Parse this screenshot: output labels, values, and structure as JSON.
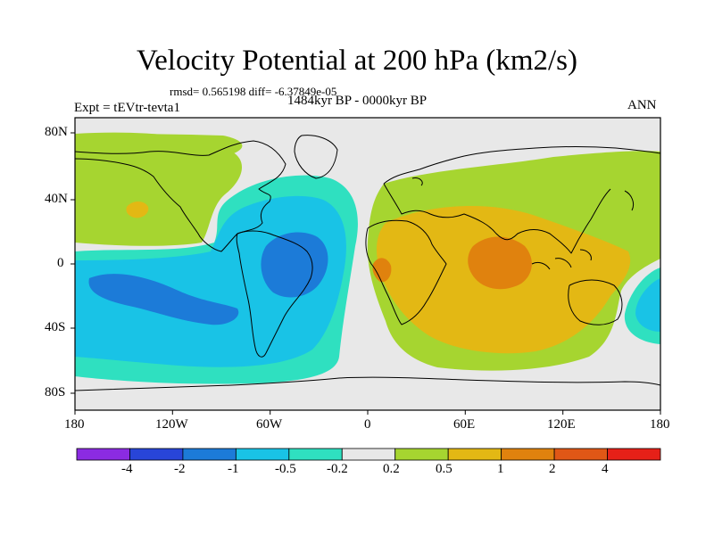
{
  "figure": {
    "title": "Velocity Potential at 200 hPa (km2/s)",
    "stats": "rmsd= 0.565198  diff= -6.37849e-05",
    "period": "1484kyr BP - 0000kyr BP",
    "experiment": "Expt = tEVtr-tevta1",
    "season": "ANN"
  },
  "axes": {
    "lat_ticks": [
      "80N",
      "40N",
      "0",
      "40S",
      "80S"
    ],
    "lon_ticks": [
      "180",
      "120W",
      "60W",
      "0",
      "60E",
      "120E",
      "180"
    ],
    "lon_range": [
      -180,
      180
    ],
    "lat_range": [
      -90,
      90
    ]
  },
  "colorbar": {
    "labels": [
      "-4",
      "-2",
      "-1",
      "-0.5",
      "-0.2",
      "0.2",
      "0.5",
      "1",
      "2",
      "4"
    ],
    "colors": [
      "#8b2be2",
      "#2845d8",
      "#1c7bd8",
      "#19c3e6",
      "#2fe0c0",
      "#e8e8e8",
      "#a6d530",
      "#e3b814",
      "#e0820e",
      "#e05716",
      "#e62018"
    ]
  }
}
